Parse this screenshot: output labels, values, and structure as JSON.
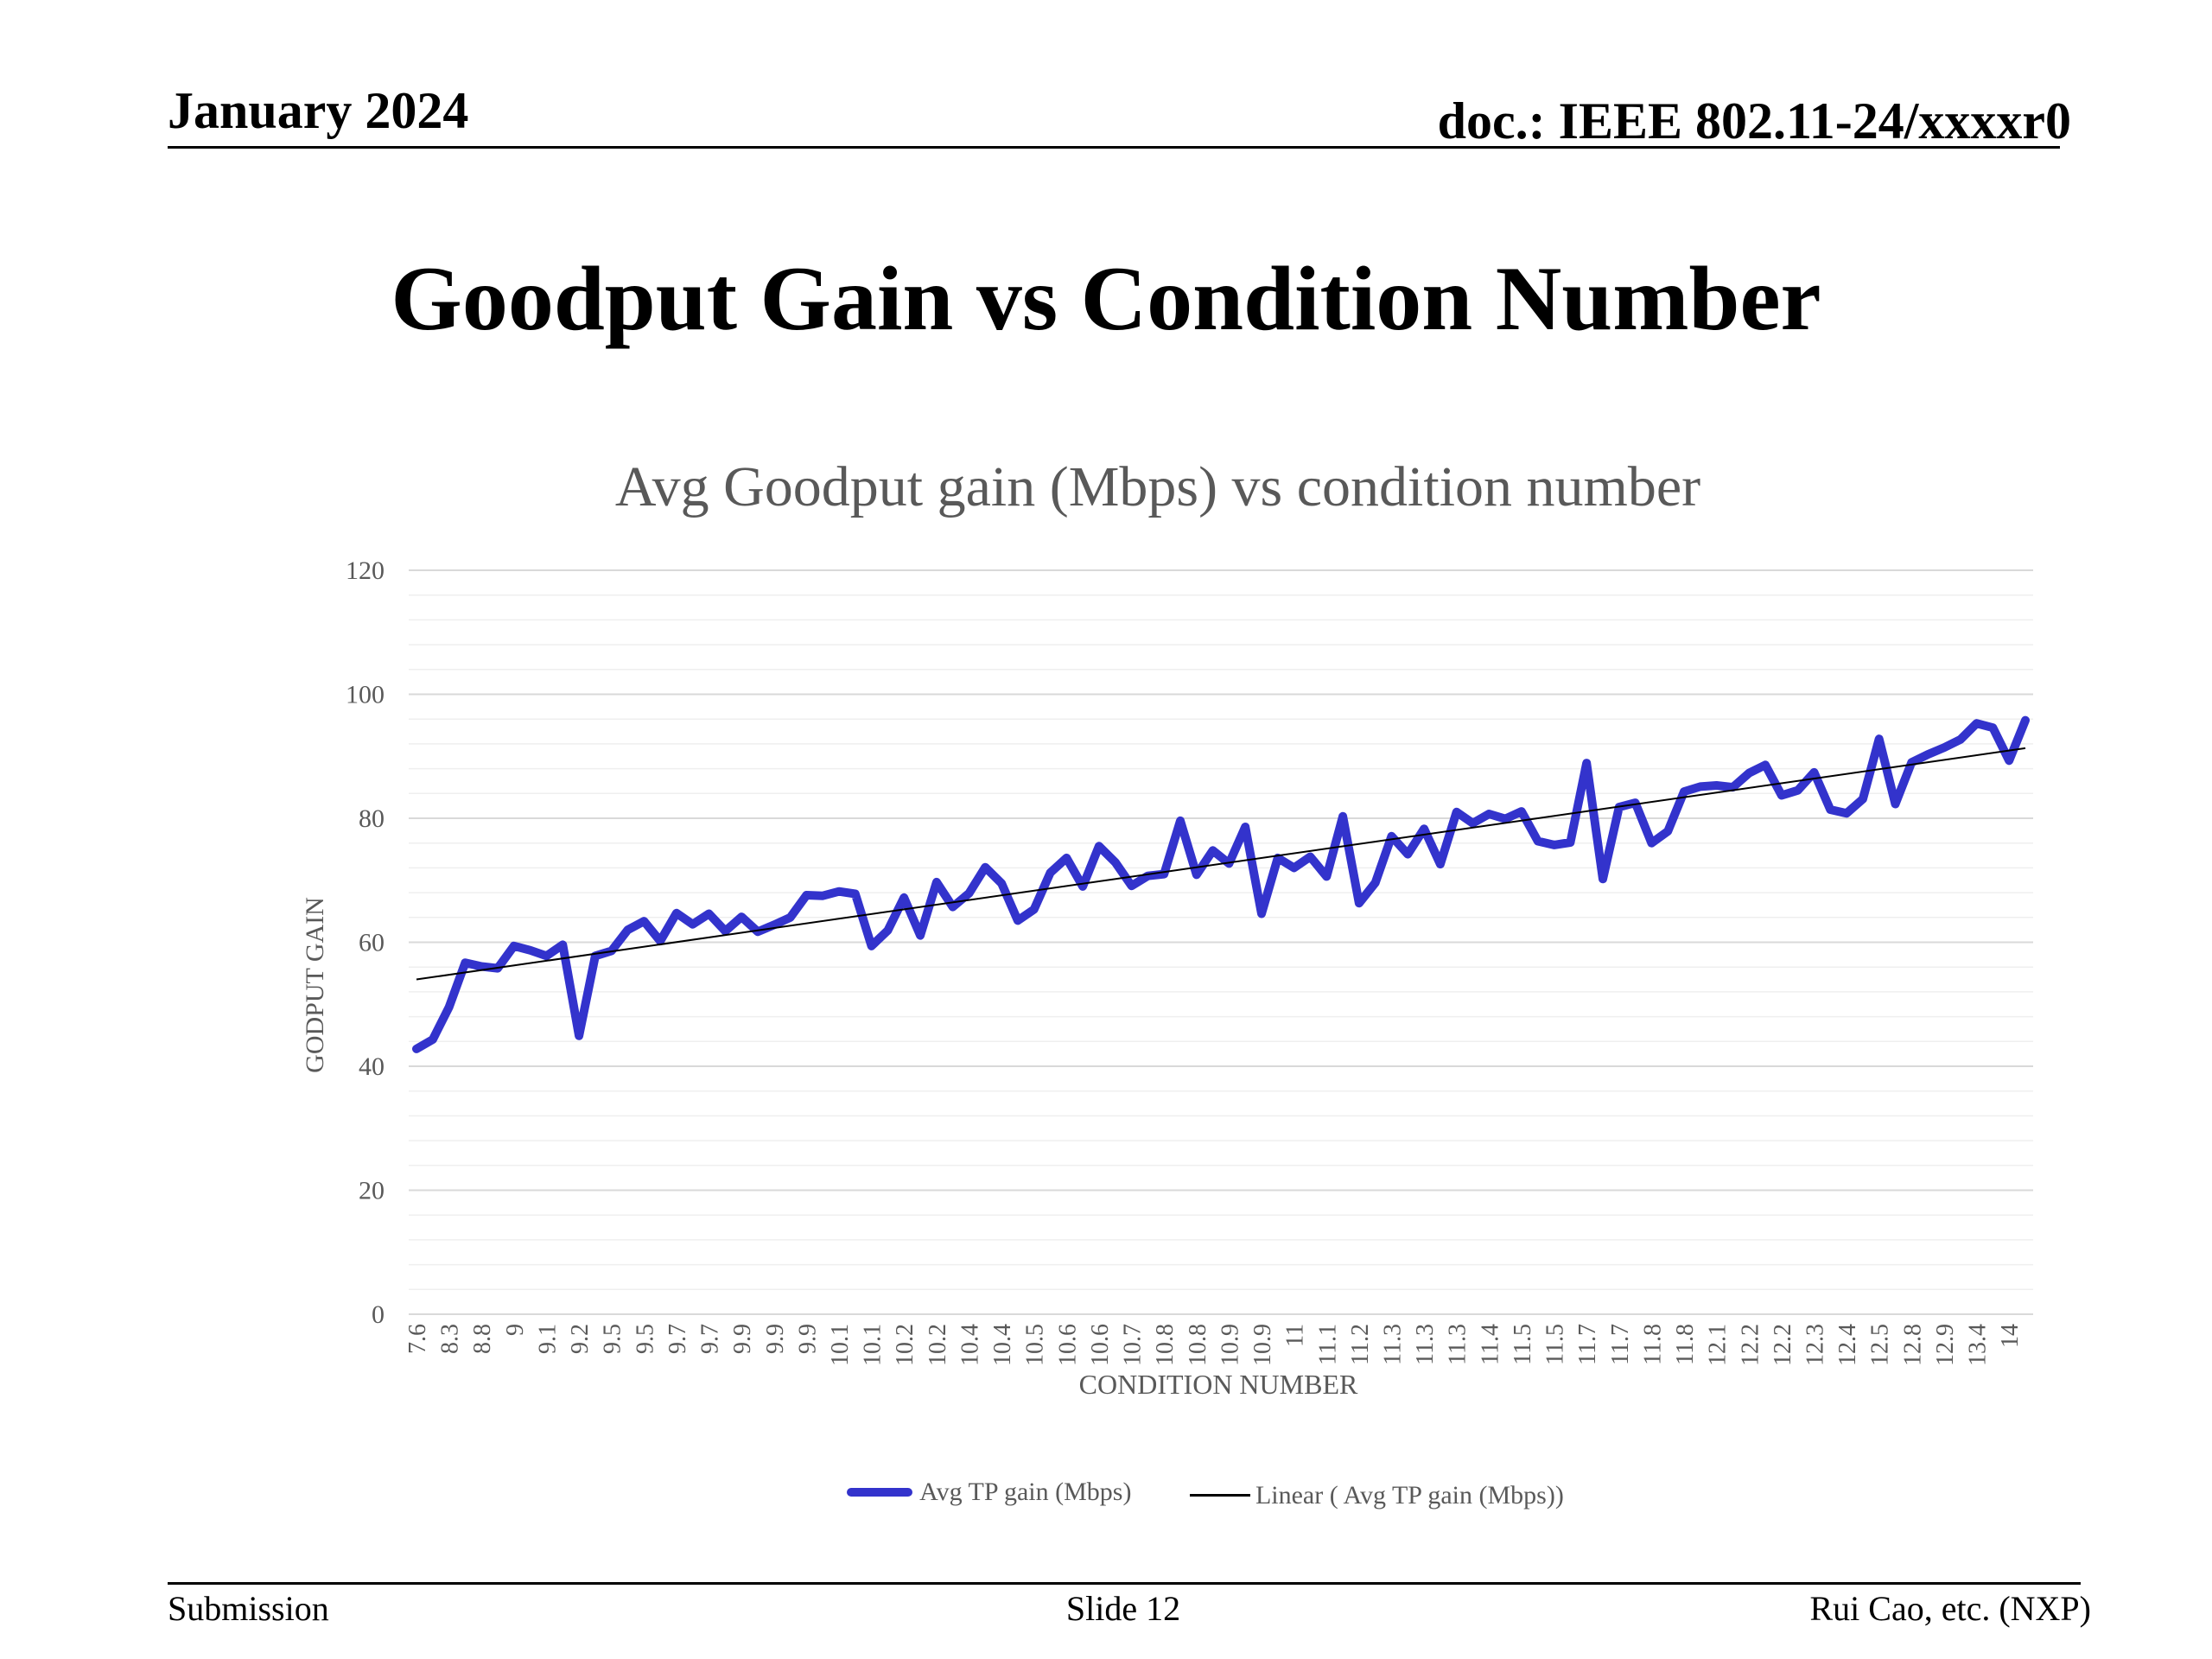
{
  "header": {
    "date": "January 2024",
    "doc": "doc.: IEEE 802.11-24/xxxxr0"
  },
  "slide": {
    "title": "Goodput Gain vs Condition Number"
  },
  "footer": {
    "left": "Submission",
    "center": "Slide 12",
    "right": "Rui Cao, etc. (NXP)"
  },
  "chart_data": {
    "type": "line",
    "title": "Avg Goodput gain (Mbps) vs condition number",
    "xlabel": "CONDITION NUMBER",
    "ylabel": "GODPUT GAIN",
    "ylim": [
      0,
      120
    ],
    "yticks": [
      0,
      20,
      40,
      60,
      80,
      100,
      120
    ],
    "grid": true,
    "legend_position": "bottom",
    "x_tick_labels": [
      "7.6",
      "8.3",
      "8.8",
      "9",
      "9.1",
      "9.2",
      "9.5",
      "9.5",
      "9.7",
      "9.7",
      "9.9",
      "9.9",
      "9.9",
      "10.1",
      "10.1",
      "10.2",
      "10.2",
      "10.4",
      "10.4",
      "10.5",
      "10.6",
      "10.6",
      "10.7",
      "10.8",
      "10.8",
      "10.9",
      "10.9",
      "11",
      "11.1",
      "11.2",
      "11.3",
      "11.3",
      "11.3",
      "11.4",
      "11.5",
      "11.5",
      "11.7",
      "11.7",
      "11.8",
      "11.8",
      "12.1",
      "12.2",
      "12.2",
      "12.3",
      "12.4",
      "12.5",
      "12.8",
      "12.9",
      "13.4",
      "14"
    ],
    "series": [
      {
        "name": "Avg TP gain (Mbps)",
        "color": "#3333cc",
        "values": [
          42.8,
          44.3,
          49.5,
          56.7,
          56.1,
          55.8,
          59.4,
          58.7,
          57.8,
          59.6,
          44.9,
          57.8,
          58.6,
          62.0,
          63.4,
          60.2,
          64.7,
          62.9,
          64.6,
          61.8,
          64.1,
          61.7,
          62.8,
          64.0,
          67.6,
          67.5,
          68.2,
          67.8,
          59.4,
          61.9,
          67.2,
          61.1,
          69.7,
          65.7,
          67.9,
          72.1,
          69.5,
          63.5,
          65.3,
          71.2,
          73.6,
          69.0,
          75.5,
          72.9,
          69.1,
          70.7,
          71.0,
          79.6,
          70.9,
          74.8,
          72.7,
          78.6,
          64.6,
          73.6,
          72.0,
          73.8,
          70.6,
          80.3,
          66.3,
          69.6,
          77.1,
          74.2,
          78.3,
          72.6,
          81.0,
          79.2,
          80.7,
          79.9,
          81.1,
          76.3,
          75.7,
          76.1,
          88.9,
          70.2,
          81.8,
          82.5,
          76.0,
          77.9,
          84.3,
          85.1,
          85.3,
          85.0,
          87.3,
          88.6,
          83.7,
          84.5,
          87.4,
          81.4,
          80.8,
          83.1,
          92.8,
          82.3,
          89.0,
          90.3,
          91.4,
          92.7,
          95.3,
          94.6,
          89.3,
          95.8
        ]
      },
      {
        "name": "Linear ( Avg TP gain (Mbps))",
        "color": "#000000",
        "trendline": true,
        "start": 54.0,
        "end": 91.3
      }
    ]
  }
}
